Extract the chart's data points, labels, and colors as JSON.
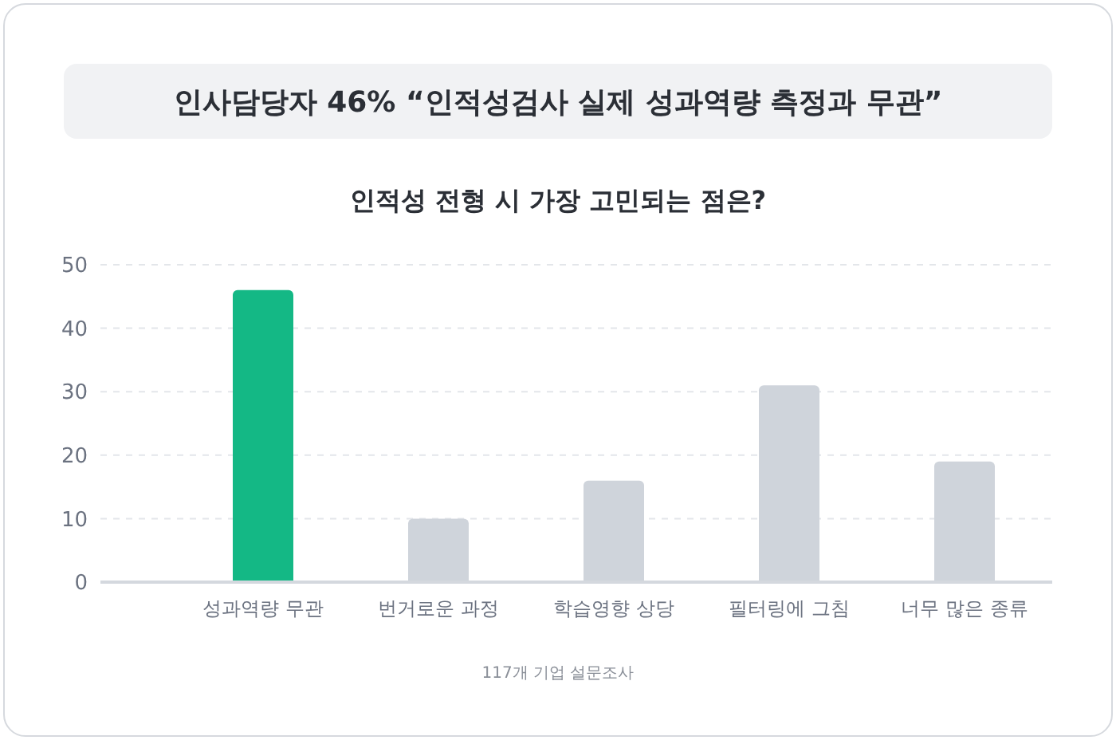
{
  "chart_data": {
    "type": "bar",
    "title": "인사담당자 46% “인적성검사 실제 성과역량 측정과 무관”",
    "subtitle": "인적성 전형 시 가장 고민되는 점은?",
    "categories": [
      "성과역량 무관",
      "번거로운 과정",
      "학습영향 상당",
      "필터링에 그침",
      "너무 많은 종류"
    ],
    "values": [
      46,
      10,
      16,
      31,
      19
    ],
    "colors": [
      "#14b885",
      "#cfd4db",
      "#cfd4db",
      "#cfd4db",
      "#cfd4db"
    ],
    "ylim": [
      0,
      50
    ],
    "yticks": [
      0,
      10,
      20,
      30,
      40,
      50
    ],
    "grid": "y",
    "annotations": [
      "117개 기업 설문조사"
    ]
  }
}
